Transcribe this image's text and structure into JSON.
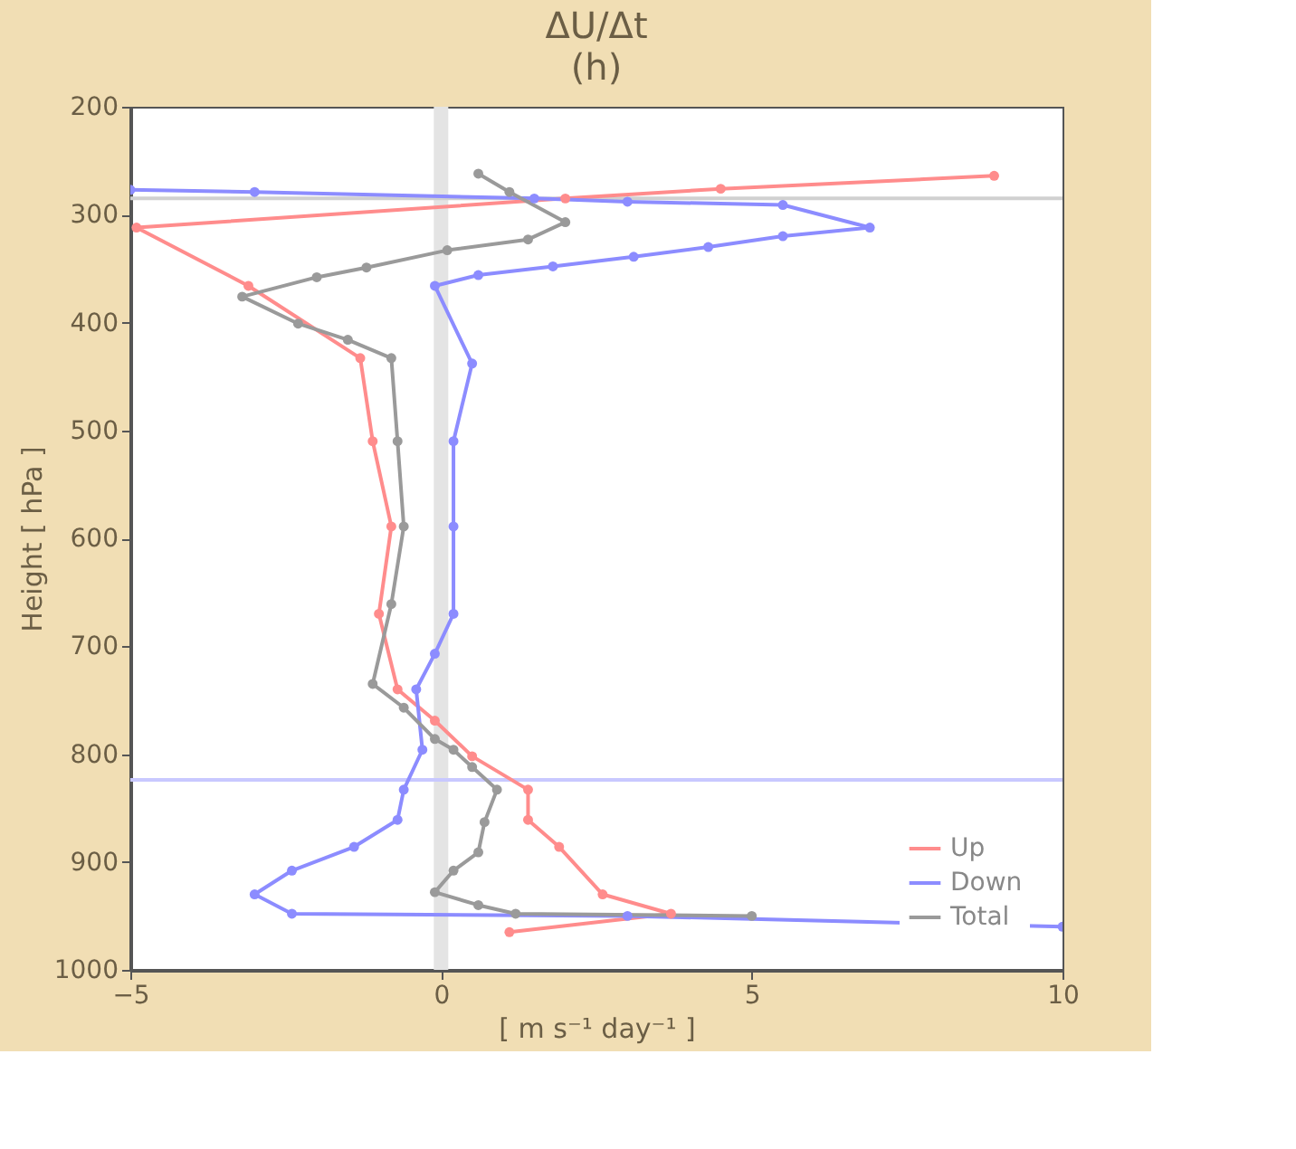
{
  "chart_data": {
    "type": "line",
    "title": "ΔU/Δt",
    "annotations": [
      "(h)"
    ],
    "xlabel": "[ m s⁻¹ day⁻¹ ]",
    "ylabel": "Height [ hPa ]",
    "xlim": [
      -5,
      10
    ],
    "xticks": [
      -5,
      0,
      5,
      10
    ],
    "ylim": [
      1000,
      200
    ],
    "yticks": [
      200,
      300,
      400,
      500,
      600,
      700,
      800,
      900,
      1000
    ],
    "grid": false,
    "legend": "bottom right",
    "marker": "circle",
    "line_style": "solid",
    "ref_lines": [
      {
        "axis": "x",
        "value": 0,
        "color": "#e4e4e4"
      },
      {
        "axis": "y",
        "value": 285,
        "color": "#d0d0d0"
      },
      {
        "axis": "y",
        "value": 824,
        "color": "#c8c8ff"
      }
    ],
    "series": [
      {
        "name": "Up",
        "color": "#ff8c8c",
        "x": [
          8.9,
          4.5,
          2.0,
          -4.9,
          -3.1,
          -1.3,
          -1.1,
          -0.8,
          -1.0,
          -0.7,
          -0.1,
          0.5,
          1.4,
          1.4,
          1.9,
          2.6,
          3.7,
          1.1
        ],
        "values": [
          264,
          276,
          285,
          312,
          366,
          433,
          510,
          589,
          670,
          740,
          769,
          802,
          833,
          861,
          886,
          930,
          948,
          965
        ]
      },
      {
        "name": "Down",
        "color": "#8c8cff",
        "x": [
          -5.0,
          -3.0,
          1.5,
          3.0,
          5.5,
          6.9,
          5.5,
          4.3,
          3.1,
          1.8,
          0.6,
          -0.1,
          0.5,
          0.2,
          0.2,
          0.2,
          -0.1,
          -0.4,
          -0.3,
          -0.6,
          -0.7,
          -1.4,
          -2.4,
          -3.0,
          -2.4,
          3.0,
          10.0
        ],
        "values": [
          277,
          279,
          285,
          288,
          291,
          312,
          320,
          330,
          339,
          348,
          356,
          366,
          438,
          510,
          589,
          670,
          707,
          740,
          796,
          833,
          861,
          886,
          908,
          930,
          948,
          950,
          960
        ]
      },
      {
        "name": "Total",
        "color": "#9a9a9a",
        "x": [
          0.6,
          1.1,
          2.0,
          1.4,
          0.1,
          -1.2,
          -2.0,
          -3.2,
          -2.3,
          -1.5,
          -0.8,
          -0.7,
          -0.6,
          -0.8,
          -1.1,
          -0.6,
          -0.1,
          0.2,
          0.5,
          0.9,
          0.7,
          0.6,
          0.2,
          -0.1,
          0.6,
          1.2,
          5.0
        ],
        "values": [
          262,
          279,
          307,
          323,
          333,
          349,
          358,
          376,
          401,
          416,
          433,
          510,
          589,
          661,
          735,
          757,
          786,
          796,
          812,
          833,
          863,
          891,
          908,
          928,
          940,
          948,
          950
        ]
      }
    ]
  }
}
